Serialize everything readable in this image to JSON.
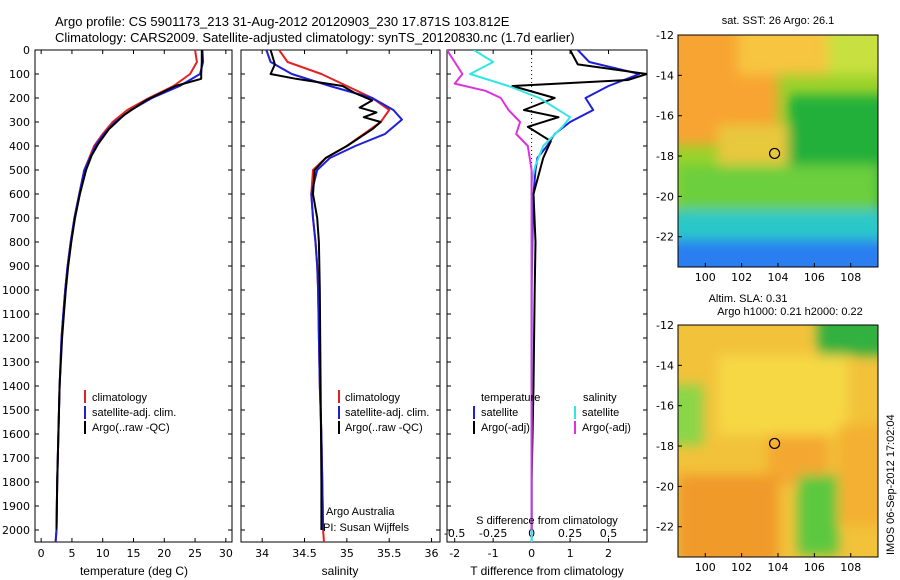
{
  "header": {
    "line1": "Argo profile: CS 5901173_213 31-Aug-2012 20120903_230 17.871S 103.812E",
    "line2": "Climatology: CARS2009. Satellite-adjusted climatology: synTS_20120830.nc (1.7d earlier)"
  },
  "side_stamp": "IMOS 06-Sep-2012 17:02:04",
  "colors": {
    "climatology": "#e32222",
    "satellite_adj": "#1f1fd8",
    "argo": "#000000",
    "salinity_satellite": "#33e6e6",
    "salinity_argo": "#dd33dd"
  },
  "panel1": {
    "xlabel": "temperature (deg C)",
    "legend": [
      "climatology",
      "satellite-adj. clim.",
      "Argo(..raw -QC)"
    ]
  },
  "panel2": {
    "xlabel": "salinity",
    "legend": [
      "climatology",
      "satellite-adj. clim.",
      "Argo(..raw -QC)"
    ],
    "credit1": "Argo Australia",
    "credit2": "PI: Susan Wijffels"
  },
  "panel3": {
    "xlabel": "T difference from climatology",
    "top_xlabel": "S difference from climatology",
    "legend_temp_header": "temperature",
    "legend_sal_header": "salinity",
    "legend_temp": [
      "satellite",
      "Argo(-adj)"
    ],
    "legend_sal": [
      "satellite",
      "Argo(-adj)"
    ]
  },
  "map1": {
    "title": "sat. SST: 26 Argo: 26.1"
  },
  "map2": {
    "title1": "Altim. SLA: 0.31",
    "title2": "Argo h1000: 0.21 h2000: 0.22"
  },
  "chart_data": [
    {
      "type": "line",
      "title": "",
      "xlabel": "temperature (deg C)",
      "ylabel": "",
      "xlim": [
        -1,
        31
      ],
      "ylim": [
        2050,
        0
      ],
      "x_ticks": [
        0,
        5,
        10,
        15,
        20,
        25,
        30
      ],
      "y_ticks": [
        0,
        100,
        200,
        300,
        400,
        500,
        600,
        700,
        800,
        900,
        1000,
        1100,
        1200,
        1300,
        1400,
        1500,
        1600,
        1700,
        1800,
        1900,
        2000
      ],
      "y_tick_labels": [
        "0",
        "100",
        "200",
        "300",
        "400",
        "500",
        "600",
        "700",
        "800",
        "900",
        "1000",
        "1100",
        "1200",
        "1300",
        "1400",
        "1500",
        "1600",
        "1700",
        "1800",
        "1900",
        "2000"
      ],
      "series": [
        {
          "name": "climatology",
          "x": [
            25.0,
            25.3,
            24.2,
            21.5,
            17.5,
            14.0,
            11.6,
            10.0,
            8.6,
            7.8,
            7.0,
            6.2,
            5.4,
            4.8,
            4.3,
            3.9,
            3.6,
            3.3,
            3.0,
            2.8,
            2.6,
            2.5,
            2.35
          ],
          "y": [
            0,
            50,
            100,
            150,
            200,
            250,
            300,
            350,
            400,
            450,
            500,
            600,
            700,
            800,
            900,
            1000,
            1100,
            1200,
            1400,
            1600,
            1800,
            2000,
            2050
          ]
        },
        {
          "name": "satellite-adj. clim.",
          "x": [
            26.2,
            26.3,
            25.8,
            22.5,
            18.0,
            14.6,
            12.0,
            10.2,
            8.8,
            7.9,
            7.0,
            6.2,
            5.4,
            4.8,
            4.3,
            3.9,
            3.6,
            3.3,
            3.0,
            2.8,
            2.6,
            2.5,
            2.35
          ],
          "y": [
            0,
            50,
            100,
            150,
            200,
            250,
            300,
            350,
            400,
            450,
            500,
            600,
            700,
            800,
            900,
            1000,
            1100,
            1200,
            1400,
            1600,
            1800,
            2000,
            2050
          ]
        },
        {
          "name": "Argo(..raw -QC)",
          "x": [
            26.1,
            26.1,
            26.0,
            26.0,
            21.8,
            17.0,
            13.5,
            11.0,
            9.3,
            8.2,
            7.3,
            6.3,
            5.5,
            4.9,
            4.4,
            4.0,
            3.7,
            3.4,
            3.0,
            2.8,
            2.6,
            2.5
          ],
          "y": [
            0,
            50,
            100,
            120,
            150,
            210,
            270,
            330,
            390,
            440,
            500,
            600,
            700,
            800,
            900,
            1000,
            1100,
            1200,
            1400,
            1600,
            1800,
            2000
          ]
        }
      ]
    },
    {
      "type": "line",
      "title": "",
      "xlabel": "salinity",
      "ylabel": "",
      "xlim": [
        33.75,
        36.1
      ],
      "ylim": [
        2050,
        0
      ],
      "x_ticks": [
        34,
        34.5,
        35,
        35.5,
        36
      ],
      "x_tick_labels": [
        "34",
        "34.5",
        "35",
        "35.5",
        "36"
      ],
      "series": [
        {
          "name": "climatology",
          "x": [
            34.2,
            34.3,
            34.7,
            35.0,
            35.3,
            35.5,
            35.4,
            35.2,
            35.0,
            34.75,
            34.6,
            34.58,
            34.6,
            34.63,
            34.65,
            34.66,
            34.67,
            34.68,
            34.7,
            34.71,
            34.72,
            34.73
          ],
          "y": [
            0,
            50,
            100,
            150,
            200,
            250,
            300,
            350,
            400,
            450,
            500,
            600,
            700,
            800,
            900,
            1000,
            1200,
            1400,
            1600,
            1800,
            2000,
            2050
          ]
        },
        {
          "name": "satellite-adj. clim.",
          "x": [
            34.05,
            34.1,
            34.35,
            34.8,
            35.3,
            35.55,
            35.65,
            35.45,
            35.1,
            34.8,
            34.65,
            34.58,
            34.6,
            34.63,
            34.65,
            34.66,
            34.67,
            34.68,
            34.7,
            34.71,
            34.72
          ],
          "y": [
            0,
            50,
            100,
            150,
            200,
            250,
            290,
            350,
            400,
            450,
            500,
            600,
            700,
            800,
            900,
            1000,
            1200,
            1400,
            1600,
            1800,
            2000
          ]
        },
        {
          "name": "Argo(..raw -QC)",
          "x": [
            34.1,
            34.15,
            34.1,
            34.4,
            34.95,
            35.1,
            35.3,
            35.15,
            35.35,
            35.2,
            35.4,
            35.3,
            35.0,
            34.75,
            34.62,
            34.6,
            34.65,
            34.67,
            34.68,
            34.69,
            34.7,
            34.7
          ],
          "y": [
            0,
            60,
            100,
            120,
            150,
            180,
            210,
            240,
            260,
            280,
            300,
            330,
            400,
            450,
            500,
            600,
            700,
            800,
            1000,
            1400,
            1800,
            2000
          ]
        }
      ]
    },
    {
      "type": "line",
      "title": "",
      "xlabel": "T difference from climatology",
      "top_xlabel": "S difference from climatology",
      "xlim": [
        -2.2,
        3.0
      ],
      "ylim": [
        2050,
        0
      ],
      "x_ticks": [
        -2,
        -1,
        0,
        1,
        2
      ],
      "top_ticks": [
        -0.5,
        -0.25,
        0,
        0.25,
        0.5
      ],
      "top_tick_labels": [
        "-0.5",
        "-0.25",
        "0",
        "0.25",
        "0.5"
      ],
      "series": [
        {
          "name": "temperature satellite",
          "x": [
            1.2,
            1.5,
            2.8,
            2.0,
            1.4,
            1.6,
            1.0,
            0.6,
            0.4,
            0.15,
            0.1,
            0.05,
            0.02,
            0.0,
            0.0,
            0.0,
            0.0
          ],
          "y": [
            0,
            50,
            100,
            150,
            200,
            250,
            300,
            350,
            400,
            450,
            500,
            600,
            800,
            1000,
            1400,
            1800,
            2050
          ]
        },
        {
          "name": "temperature Argo(-adj)",
          "x": [
            1.0,
            1.2,
            3.0,
            2.5,
            -0.5,
            0.6,
            -0.2,
            0.7,
            -0.1,
            0.5,
            0.3,
            0.05,
            0.1,
            0.08,
            0.05,
            0.0,
            0.0
          ],
          "y": [
            0,
            60,
            100,
            125,
            150,
            200,
            250,
            280,
            320,
            380,
            450,
            600,
            800,
            1000,
            1400,
            1800,
            2000
          ]
        },
        {
          "name": "salinity satellite",
          "x": [
            -1.5,
            -1.0,
            -1.6,
            -0.6,
            0.2,
            1.0,
            0.8,
            0.3,
            0.1,
            0.0,
            0.0,
            0.0,
            0.0,
            0.0
          ],
          "y": [
            0,
            50,
            100,
            150,
            200,
            280,
            320,
            400,
            480,
            550,
            700,
            1000,
            1600,
            2050
          ]
        },
        {
          "name": "salinity Argo(-adj)",
          "x": [
            -2.2,
            -1.8,
            -2.0,
            -1.2,
            -0.8,
            -0.6,
            -0.3,
            -0.4,
            -0.1,
            -0.05,
            0.0,
            0.0,
            0.0
          ],
          "y": [
            0,
            100,
            140,
            170,
            200,
            250,
            300,
            350,
            400,
            450,
            500,
            700,
            2000
          ]
        }
      ]
    },
    {
      "type": "heatmap",
      "title": "sat. SST: 26 Argo: 26.1",
      "xlim": [
        98.5,
        109.5
      ],
      "ylim": [
        -23.5,
        -12
      ],
      "x_ticks": [
        100,
        102,
        104,
        106,
        108
      ],
      "y_ticks": [
        -12,
        -14,
        -16,
        -18,
        -20,
        -22
      ],
      "marker": {
        "lon": 103.812,
        "lat": -17.871
      }
    },
    {
      "type": "heatmap",
      "title": "Altim. SLA: 0.31 / Argo h1000: 0.21 h2000: 0.22",
      "xlim": [
        98.5,
        109.5
      ],
      "ylim": [
        -23.5,
        -12
      ],
      "x_ticks": [
        100,
        102,
        104,
        106,
        108
      ],
      "y_ticks": [
        -12,
        -14,
        -16,
        -18,
        -20,
        -22
      ],
      "marker": {
        "lon": 103.812,
        "lat": -17.871
      }
    }
  ]
}
